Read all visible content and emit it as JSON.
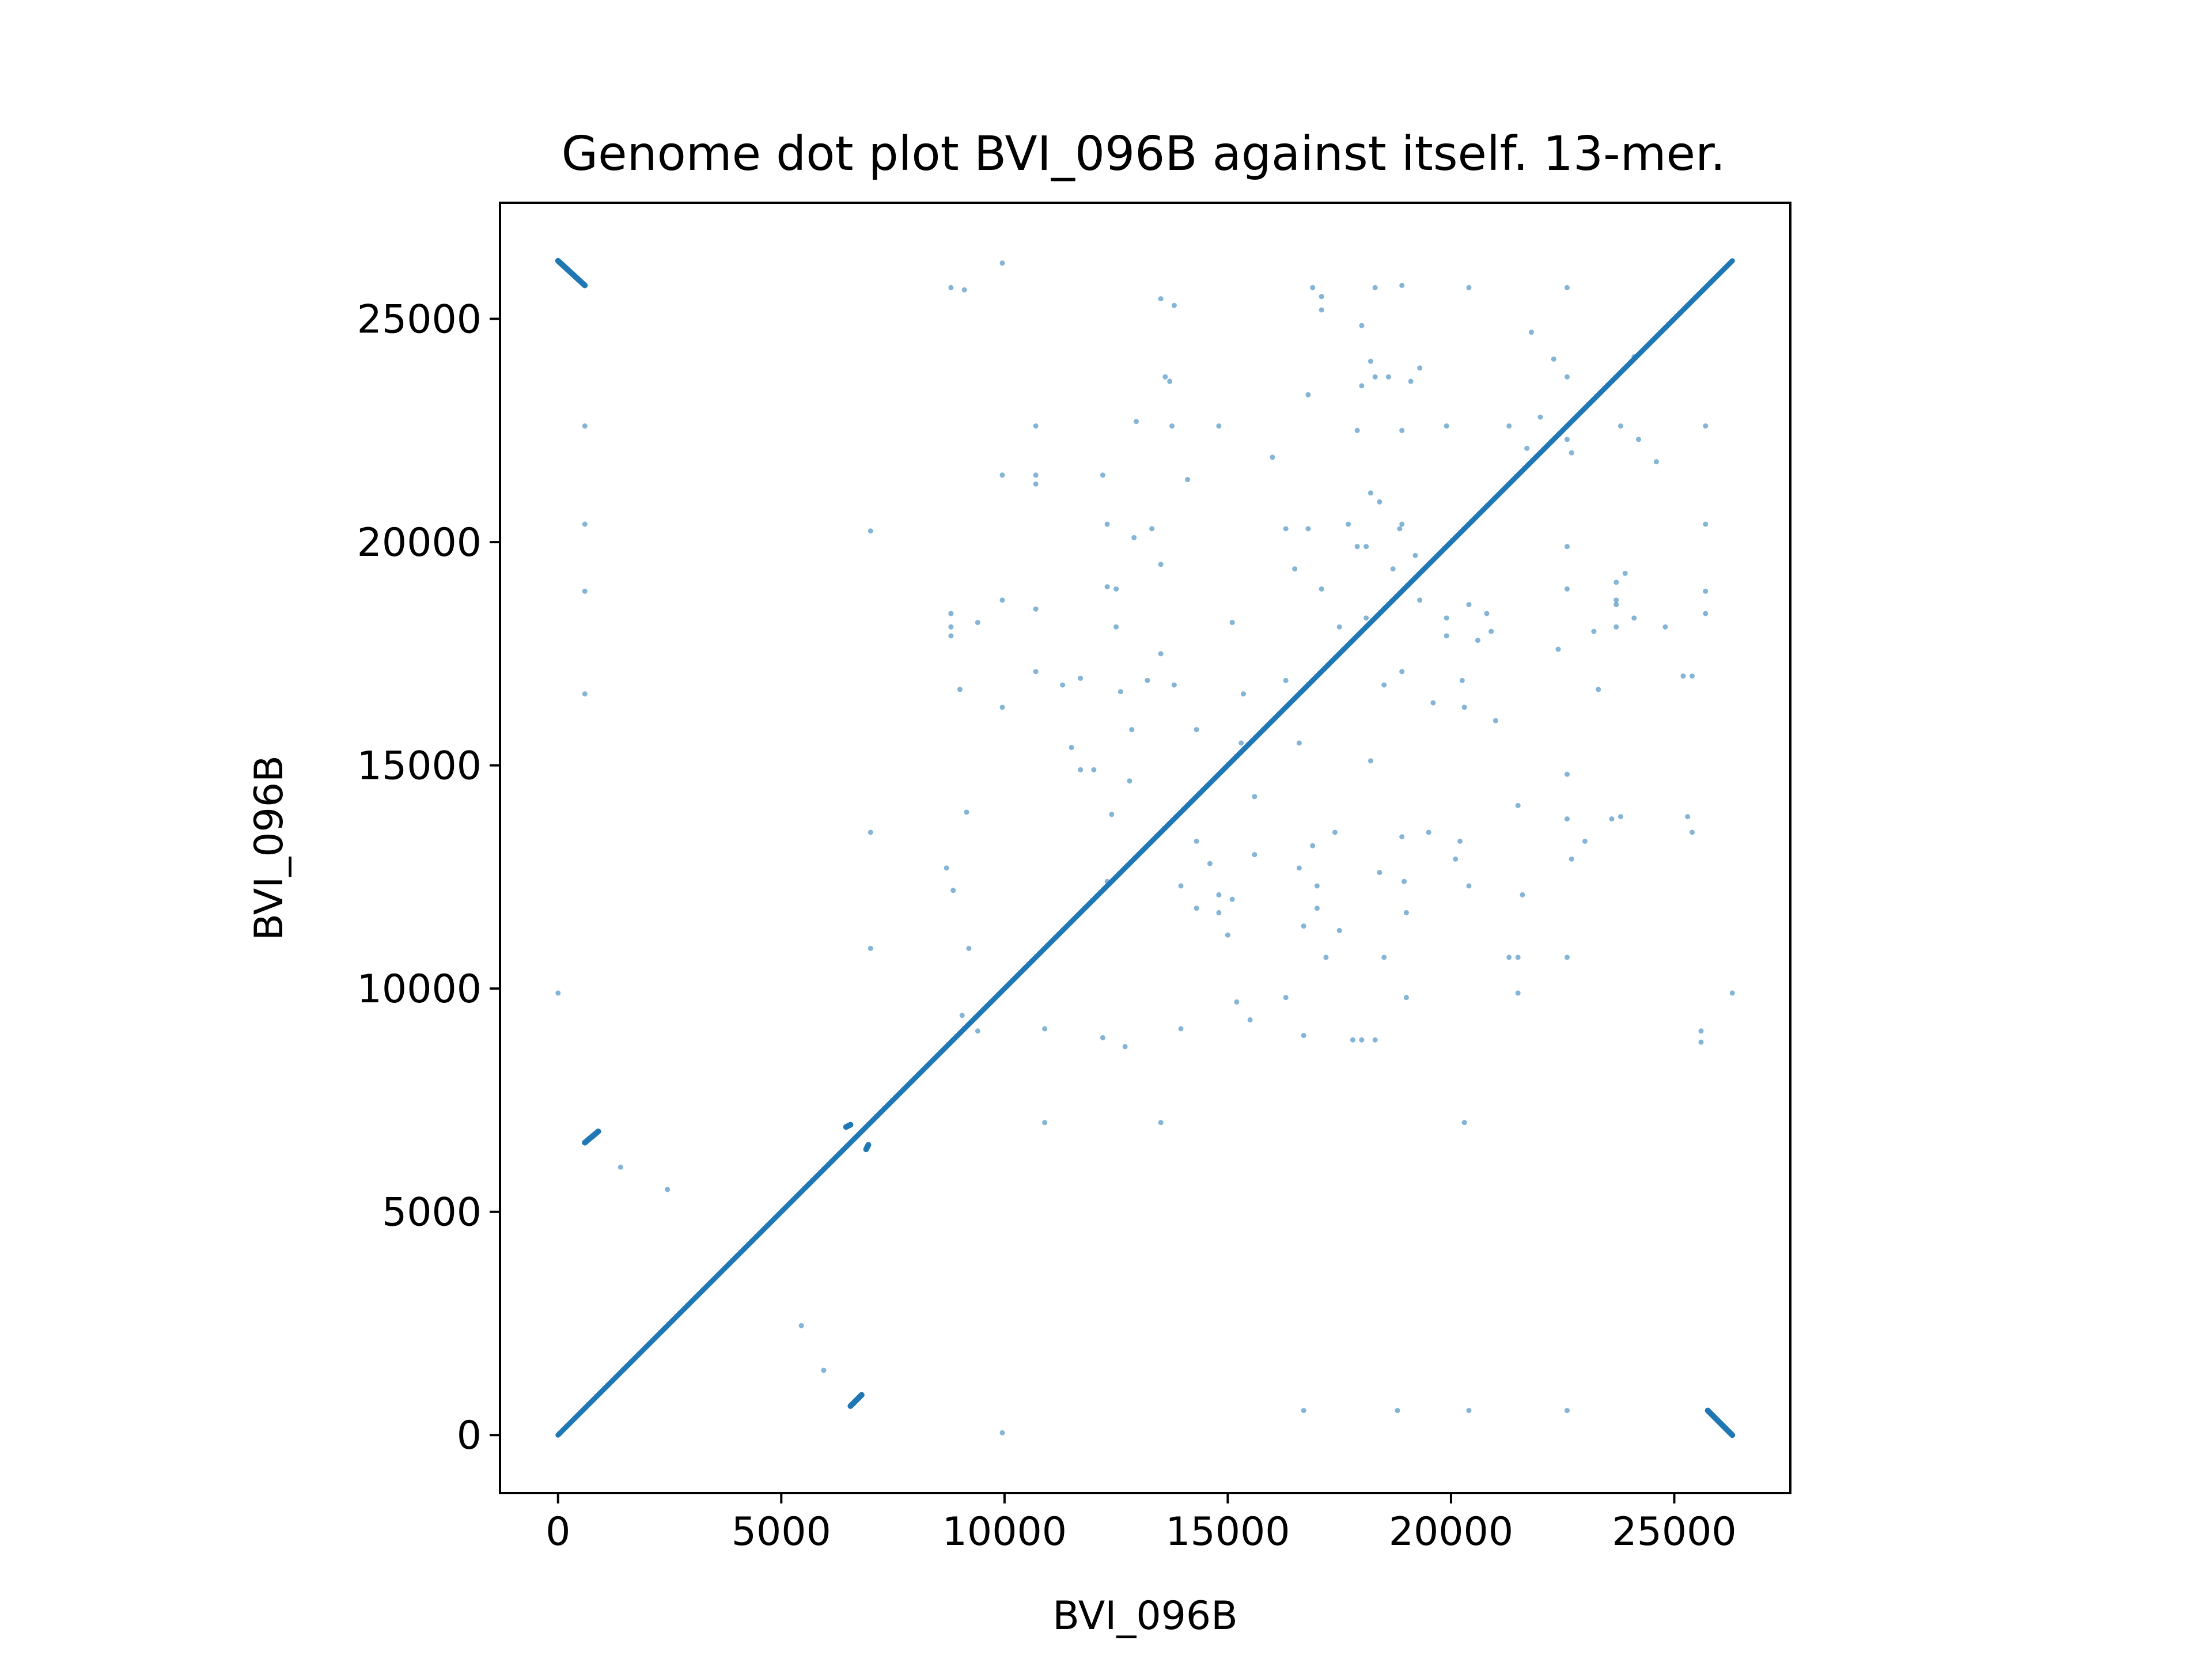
{
  "chart_data": {
    "type": "scatter",
    "title": "Genome dot plot BVI_096B against itself. 13-mer.",
    "xlabel": "BVI_096B",
    "ylabel": "BVI_096B",
    "xlim": [
      -1300,
      27600
    ],
    "ylim": [
      -1300,
      27600
    ],
    "xticks": [
      0,
      5000,
      10000,
      15000,
      20000,
      25000
    ],
    "yticks": [
      0,
      5000,
      10000,
      15000,
      20000,
      25000
    ],
    "grid": false,
    "legend": "none",
    "color": "#1f77b4",
    "segments": [
      {
        "x1": 0,
        "y1": 0,
        "x2": 26300,
        "y2": 26300
      },
      {
        "x1": 0,
        "y1": 26300,
        "x2": 600,
        "y2": 25750
      },
      {
        "x1": 25750,
        "y1": 550,
        "x2": 26300,
        "y2": 0
      },
      {
        "x1": 600,
        "y1": 6550,
        "x2": 900,
        "y2": 6800
      },
      {
        "x1": 6550,
        "y1": 650,
        "x2": 6800,
        "y2": 900
      },
      {
        "x1": 6450,
        "y1": 6900,
        "x2": 6550,
        "y2": 6950
      },
      {
        "x1": 6900,
        "y1": 6400,
        "x2": 6950,
        "y2": 6500
      }
    ],
    "points": [
      [
        600,
        22600
      ],
      [
        600,
        16600
      ],
      [
        600,
        20400
      ],
      [
        600,
        18900
      ],
      [
        0,
        9900
      ],
      [
        1400,
        6000
      ],
      [
        2450,
        5500
      ],
      [
        5450,
        2450
      ],
      [
        5950,
        1450
      ],
      [
        7000,
        20250
      ],
      [
        7000,
        13500
      ],
      [
        7000,
        10900
      ],
      [
        9950,
        50
      ],
      [
        9950,
        26250
      ],
      [
        8800,
        25700
      ],
      [
        9100,
        25650
      ],
      [
        8800,
        18400
      ],
      [
        8800,
        18100
      ],
      [
        8800,
        17900
      ],
      [
        8700,
        12700
      ],
      [
        8850,
        12200
      ],
      [
        9150,
        13950
      ],
      [
        9200,
        10900
      ],
      [
        9050,
        9400
      ],
      [
        9400,
        9050
      ],
      [
        9000,
        16700
      ],
      [
        9400,
        18200
      ],
      [
        9950,
        21500
      ],
      [
        9950,
        18700
      ],
      [
        9950,
        16300
      ],
      [
        10700,
        22600
      ],
      [
        10700,
        21500
      ],
      [
        10700,
        21300
      ],
      [
        10700,
        18500
      ],
      [
        10700,
        17100
      ],
      [
        10900,
        9100
      ],
      [
        10900,
        7000
      ],
      [
        11300,
        16800
      ],
      [
        11700,
        16950
      ],
      [
        11500,
        15400
      ],
      [
        11700,
        14900
      ],
      [
        12000,
        14900
      ],
      [
        12200,
        21500
      ],
      [
        12200,
        8900
      ],
      [
        12300,
        20400
      ],
      [
        12300,
        19000
      ],
      [
        12500,
        18950
      ],
      [
        12400,
        13900
      ],
      [
        12300,
        12400
      ],
      [
        12500,
        18100
      ],
      [
        12600,
        16650
      ],
      [
        12700,
        8700
      ],
      [
        12800,
        14650
      ],
      [
        12850,
        15800
      ],
      [
        12900,
        20100
      ],
      [
        12950,
        22700
      ],
      [
        13200,
        16900
      ],
      [
        13300,
        20300
      ],
      [
        13500,
        25450
      ],
      [
        13500,
        19500
      ],
      [
        13500,
        17500
      ],
      [
        13500,
        7000
      ],
      [
        13600,
        23700
      ],
      [
        13700,
        23600
      ],
      [
        13750,
        22600
      ],
      [
        13800,
        16800
      ],
      [
        13800,
        25300
      ],
      [
        13950,
        9100
      ],
      [
        13950,
        12300
      ],
      [
        14100,
        21400
      ],
      [
        14300,
        15800
      ],
      [
        14300,
        13300
      ],
      [
        14600,
        12800
      ],
      [
        14800,
        22600
      ],
      [
        14800,
        12100
      ],
      [
        14800,
        11700
      ],
      [
        15100,
        18200
      ],
      [
        15100,
        12000
      ],
      [
        15300,
        15500
      ],
      [
        15350,
        16600
      ],
      [
        15600,
        14300
      ],
      [
        15600,
        13000
      ],
      [
        16000,
        21900
      ],
      [
        16300,
        20300
      ],
      [
        16300,
        16900
      ],
      [
        16300,
        9800
      ],
      [
        16500,
        19400
      ],
      [
        16600,
        15500
      ],
      [
        16600,
        12700
      ],
      [
        16700,
        8950
      ],
      [
        16700,
        550
      ],
      [
        16800,
        23300
      ],
      [
        16800,
        20300
      ],
      [
        16900,
        13200
      ],
      [
        17000,
        12300
      ],
      [
        17000,
        11800
      ],
      [
        17100,
        25500
      ],
      [
        17100,
        25200
      ],
      [
        17100,
        18950
      ],
      [
        17200,
        10700
      ],
      [
        17400,
        13500
      ],
      [
        17500,
        11300
      ],
      [
        17500,
        18100
      ],
      [
        17700,
        20400
      ],
      [
        17900,
        22500
      ],
      [
        17900,
        19900
      ],
      [
        18000,
        23500
      ],
      [
        18000,
        24850
      ],
      [
        18100,
        19900
      ],
      [
        18100,
        18300
      ],
      [
        18200,
        24050
      ],
      [
        18200,
        21100
      ],
      [
        18200,
        15100
      ],
      [
        18300,
        23700
      ],
      [
        18300,
        25700
      ],
      [
        18400,
        20900
      ],
      [
        18400,
        12600
      ],
      [
        18500,
        10700
      ],
      [
        18500,
        16800
      ],
      [
        18600,
        23700
      ],
      [
        18700,
        19400
      ],
      [
        18850,
        20300
      ],
      [
        18900,
        25750
      ],
      [
        18900,
        22500
      ],
      [
        18900,
        20400
      ],
      [
        18900,
        17100
      ],
      [
        18900,
        13400
      ],
      [
        18950,
        12400
      ],
      [
        19000,
        11700
      ],
      [
        19100,
        23600
      ],
      [
        19300,
        23900
      ],
      [
        19300,
        18700
      ],
      [
        19500,
        13500
      ],
      [
        19600,
        16400
      ],
      [
        19900,
        22600
      ],
      [
        19900,
        18300
      ],
      [
        19900,
        17900
      ],
      [
        20100,
        12900
      ],
      [
        20200,
        13300
      ],
      [
        20250,
        16900
      ],
      [
        20300,
        16300
      ],
      [
        20300,
        7000
      ],
      [
        20400,
        25700
      ],
      [
        20400,
        12300
      ],
      [
        20400,
        18600
      ],
      [
        20400,
        550
      ],
      [
        20600,
        17800
      ],
      [
        20800,
        18400
      ],
      [
        20900,
        18000
      ],
      [
        21000,
        16000
      ],
      [
        21300,
        22600
      ],
      [
        21300,
        10700
      ],
      [
        21500,
        14100
      ],
      [
        21500,
        10700
      ],
      [
        21500,
        9900
      ],
      [
        21600,
        12100
      ],
      [
        21700,
        22100
      ],
      [
        21800,
        24700
      ],
      [
        22000,
        22800
      ],
      [
        22300,
        24100
      ],
      [
        22400,
        17600
      ],
      [
        22600,
        25700
      ],
      [
        22600,
        23700
      ],
      [
        22600,
        22300
      ],
      [
        22600,
        19900
      ],
      [
        22600,
        18950
      ],
      [
        22600,
        14800
      ],
      [
        22600,
        13800
      ],
      [
        22600,
        10700
      ],
      [
        22600,
        550
      ],
      [
        22700,
        22000
      ],
      [
        22700,
        12900
      ],
      [
        23000,
        13300
      ],
      [
        23200,
        18000
      ],
      [
        23300,
        16700
      ],
      [
        23600,
        13800
      ],
      [
        23700,
        19100
      ],
      [
        23700,
        18700
      ],
      [
        23700,
        18600
      ],
      [
        23700,
        18100
      ],
      [
        23800,
        13850
      ],
      [
        23800,
        22600
      ],
      [
        23900,
        19300
      ],
      [
        24100,
        18300
      ],
      [
        24100,
        24150
      ],
      [
        24200,
        22300
      ],
      [
        24600,
        21800
      ],
      [
        24800,
        18100
      ],
      [
        25200,
        17000
      ],
      [
        25300,
        13850
      ],
      [
        25400,
        17000
      ],
      [
        25400,
        13500
      ],
      [
        25600,
        9050
      ],
      [
        25600,
        8800
      ],
      [
        25700,
        22600
      ],
      [
        25700,
        20400
      ],
      [
        25700,
        18900
      ],
      [
        25700,
        18400
      ],
      [
        26300,
        9900
      ],
      [
        18000,
        8850
      ],
      [
        18300,
        8850
      ],
      [
        17800,
        8850
      ],
      [
        19000,
        9800
      ],
      [
        15500,
        9300
      ],
      [
        15200,
        9700
      ],
      [
        14300,
        11800
      ],
      [
        15000,
        11200
      ],
      [
        16700,
        11400
      ],
      [
        19200,
        19700
      ],
      [
        16900,
        25700
      ],
      [
        18800,
        550
      ]
    ]
  }
}
